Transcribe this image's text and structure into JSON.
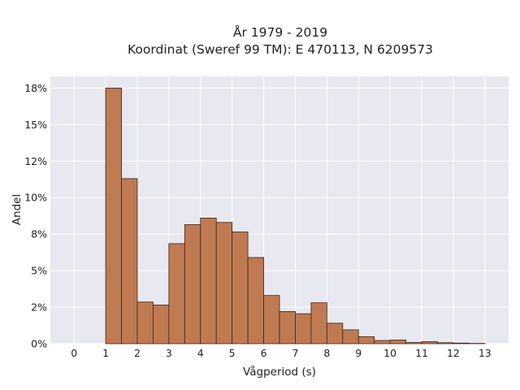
{
  "chart_data": {
    "type": "bar",
    "title_line1": "År 1979 - 2019",
    "title_line2": "Koordinat (Sweref 99 TM): E 470113, N 6209573",
    "xlabel": "Vågperiod (s)",
    "ylabel": "Andel",
    "xlim": [
      -0.75,
      13.75
    ],
    "ylim": [
      0,
      18.3
    ],
    "x_ticks": [
      0,
      1,
      2,
      3,
      4,
      5,
      6,
      7,
      8,
      9,
      10,
      11,
      12,
      13
    ],
    "y_ticks": [
      0,
      2.5,
      5,
      7.5,
      10,
      12.5,
      15,
      17.5
    ],
    "y_tick_labels": [
      "0%",
      "2%",
      "5%",
      "8%",
      "10%",
      "12%",
      "15%",
      "18%"
    ],
    "bin_width": 0.5,
    "bins_start": [
      1.0,
      1.5,
      2.0,
      2.5,
      3.0,
      3.5,
      4.0,
      4.5,
      5.0,
      5.5,
      6.0,
      6.5,
      7.0,
      7.5,
      8.0,
      8.5,
      9.0,
      9.5,
      10.0,
      10.5,
      11.0,
      11.5,
      12.0,
      12.5
    ],
    "values": [
      17.5,
      11.3,
      2.85,
      2.65,
      6.85,
      8.15,
      8.6,
      8.3,
      7.65,
      5.9,
      3.3,
      2.2,
      2.05,
      2.8,
      1.4,
      0.95,
      0.48,
      0.22,
      0.25,
      0.08,
      0.14,
      0.07,
      0.04,
      0.02
    ],
    "grid": true,
    "background": "#e8e8f0",
    "bar_color": "#c07a52",
    "bar_edge_color": "#3b2417"
  }
}
